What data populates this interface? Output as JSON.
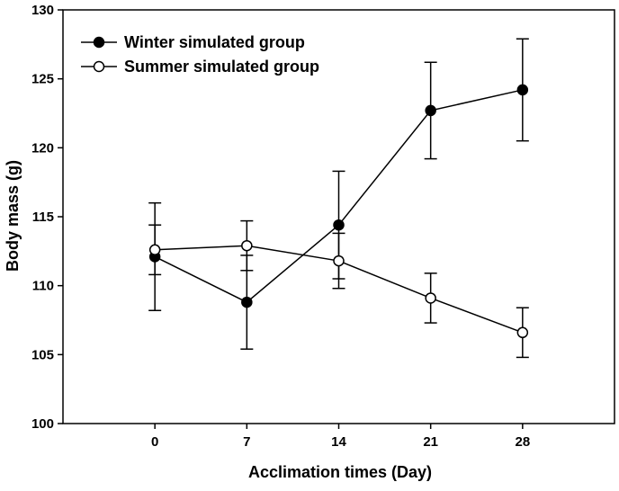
{
  "chart_data": {
    "type": "line",
    "title": "",
    "xlabel": "Acclimation times (Day)",
    "ylabel": "Body mass (g)",
    "x": [
      0,
      7,
      14,
      21,
      28
    ],
    "xlim": [
      -7,
      35
    ],
    "ylim": [
      100,
      130
    ],
    "y_ticks": [
      100,
      105,
      110,
      115,
      120,
      125,
      130
    ],
    "x_ticks": [
      0,
      7,
      14,
      21,
      28
    ],
    "y_tick_labels": [
      "100",
      "105",
      "110",
      "115",
      "120",
      "125",
      "130"
    ],
    "x_tick_labels": [
      "0",
      "7",
      "14",
      "21",
      "28"
    ],
    "grid": false,
    "legend_placement": "top-left",
    "series": [
      {
        "name": "Winter simulated group",
        "marker": "filled-circle",
        "color": "#000000",
        "values": [
          112.1,
          108.8,
          114.4,
          122.7,
          124.2
        ],
        "errors": [
          3.9,
          3.4,
          3.9,
          3.5,
          3.7
        ]
      },
      {
        "name": "Summer simulated group",
        "marker": "open-circle",
        "color": "#000000",
        "values": [
          112.6,
          112.9,
          111.8,
          109.1,
          106.6
        ],
        "errors": [
          1.8,
          1.8,
          2.0,
          1.8,
          1.8
        ]
      }
    ]
  }
}
